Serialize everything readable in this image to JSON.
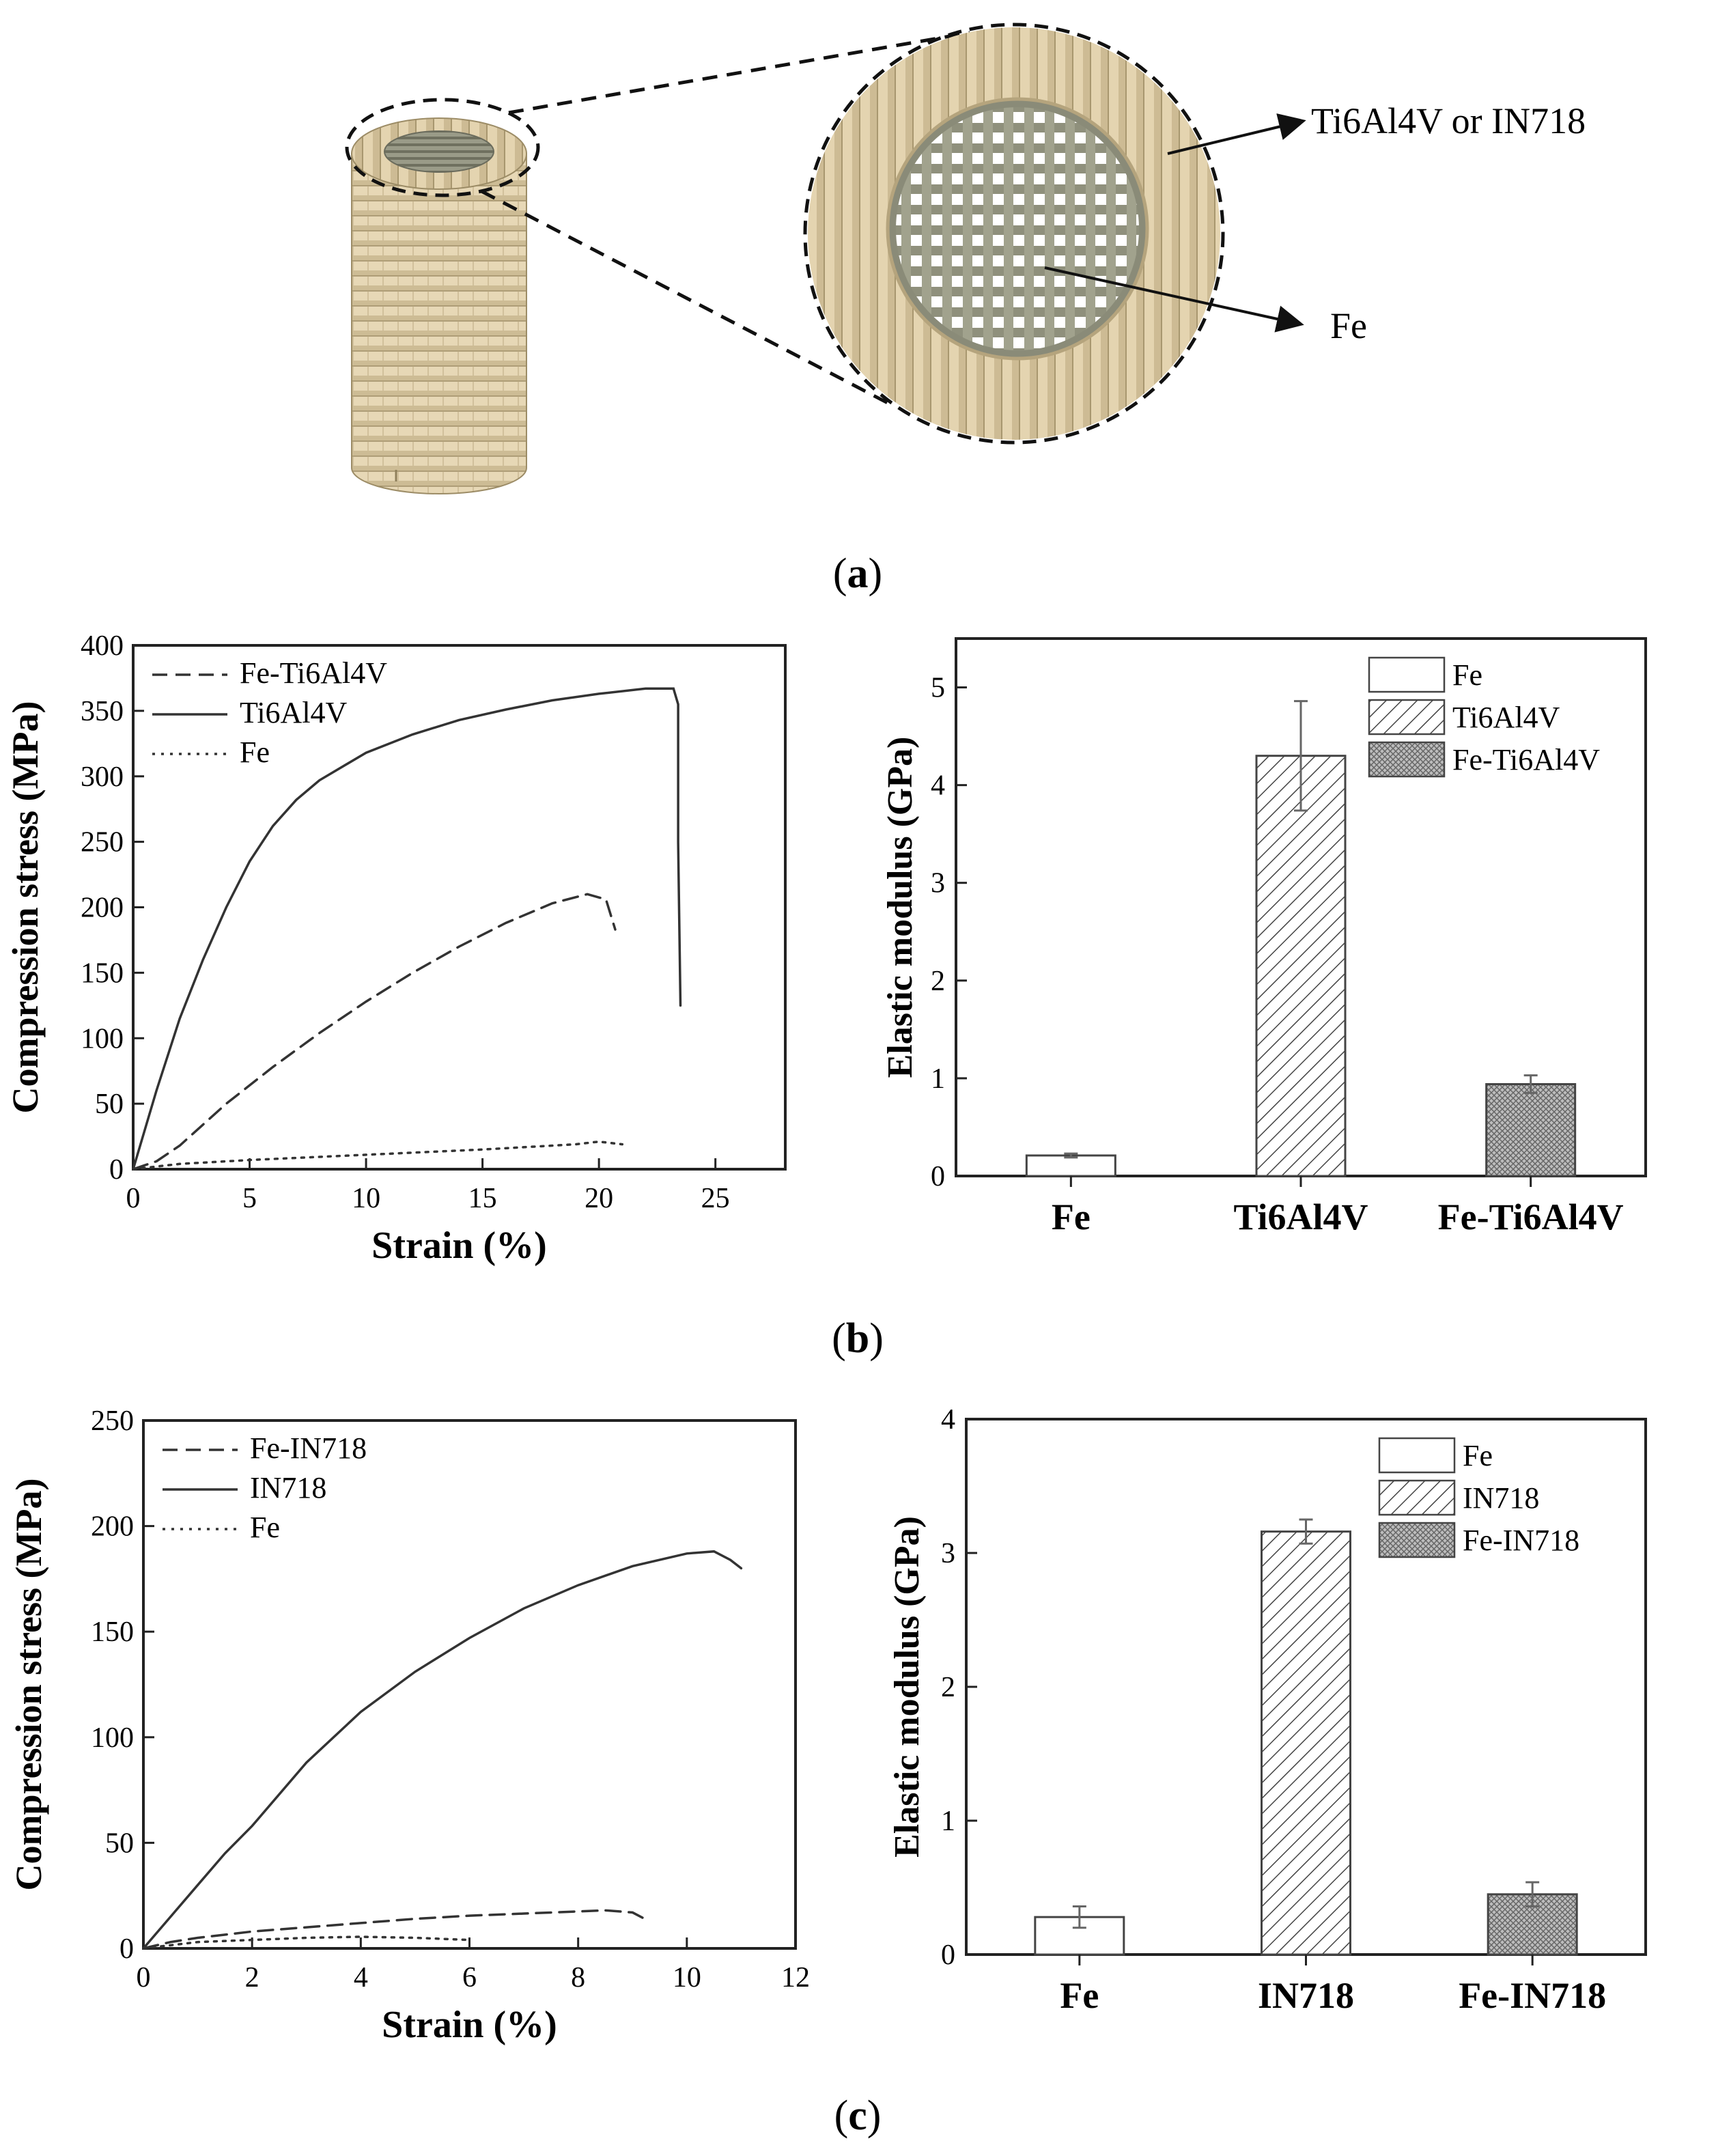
{
  "panel_a": {
    "label_open": "(",
    "label_letter": "a",
    "label_close": ")",
    "outer_label": "Ti6Al4V or IN718",
    "inner_label": "Fe",
    "colors": {
      "shell": "#e2d2ae",
      "shell_dark": "#b8a882",
      "core": "#8a8b78",
      "core_light": "#c9cab8"
    }
  },
  "panel_b": {
    "label_open": "(",
    "label_letter": "b",
    "label_close": ")"
  },
  "panel_c": {
    "label_open": "(",
    "label_letter": "c",
    "label_close": ")"
  },
  "chart_data": [
    {
      "id": "b_left",
      "type": "line",
      "xlabel": "Strain (%)",
      "ylabel": "Compression stress (MPa)",
      "xlim": [
        0,
        28
      ],
      "ylim": [
        0,
        400
      ],
      "xticks": [
        0,
        5,
        10,
        15,
        20,
        25
      ],
      "yticks": [
        0,
        50,
        100,
        150,
        200,
        250,
        300,
        350,
        400
      ],
      "legend": "top-left",
      "series": [
        {
          "name": "Fe-Ti6Al4V",
          "style": "dashed",
          "x": [
            0,
            1,
            2,
            3,
            4,
            5,
            6,
            8,
            10,
            12,
            14,
            16,
            18,
            19.5,
            20.3,
            20.7
          ],
          "y": [
            0,
            6,
            18,
            34,
            50,
            64,
            78,
            104,
            128,
            150,
            170,
            188,
            203,
            210,
            206,
            183
          ]
        },
        {
          "name": "Ti6Al4V",
          "style": "solid",
          "x": [
            0,
            1,
            2,
            3,
            4,
            5,
            6,
            7,
            8,
            10,
            12,
            14,
            16,
            18,
            20,
            22,
            23.2,
            23.4,
            23.4,
            23.5
          ],
          "y": [
            0,
            60,
            115,
            160,
            200,
            235,
            262,
            282,
            297,
            318,
            332,
            343,
            351,
            358,
            363,
            367,
            367,
            355,
            250,
            125
          ]
        },
        {
          "name": "Fe",
          "style": "dotted",
          "x": [
            0,
            2,
            5,
            10,
            15,
            19,
            20,
            21
          ],
          "y": [
            0,
            4,
            7,
            11,
            15,
            19,
            21,
            19
          ]
        }
      ]
    },
    {
      "id": "b_right",
      "type": "bar",
      "xlabel": "",
      "ylabel": "Elastic modulus (GPa)",
      "ylim": [
        0,
        5.5
      ],
      "yticks": [
        0,
        1,
        2,
        3,
        4,
        5
      ],
      "categories": [
        "Fe",
        "Ti6Al4V",
        "Fe-Ti6Al4V"
      ],
      "values": [
        0.21,
        4.3,
        0.94
      ],
      "errors": [
        0.02,
        0.56,
        0.09
      ],
      "fills": [
        "plain",
        "hatch",
        "crosshatch"
      ],
      "legend": "top-right",
      "legend_labels": [
        "Fe",
        "Ti6Al4V",
        "Fe-Ti6Al4V"
      ]
    },
    {
      "id": "c_left",
      "type": "line",
      "xlabel": "Strain (%)",
      "ylabel": "Compression stress (MPa)",
      "xlim": [
        0,
        12
      ],
      "ylim": [
        0,
        250
      ],
      "xticks": [
        0,
        2,
        4,
        6,
        8,
        10,
        12
      ],
      "yticks": [
        0,
        50,
        100,
        150,
        200,
        250
      ],
      "legend": "top-left",
      "series": [
        {
          "name": "Fe-IN718",
          "style": "dashed",
          "x": [
            0,
            0.5,
            1,
            2,
            3,
            4,
            5,
            6,
            7,
            8,
            8.5,
            9,
            9.3
          ],
          "y": [
            0,
            3,
            5,
            8,
            10,
            12,
            14,
            15.5,
            16.5,
            17.5,
            18,
            17,
            13
          ]
        },
        {
          "name": "IN718",
          "style": "solid",
          "x": [
            0,
            0.5,
            1,
            1.5,
            2,
            3,
            4,
            5,
            6,
            7,
            8,
            9,
            10,
            10.5,
            10.8,
            11
          ],
          "y": [
            0,
            15,
            30,
            45,
            58,
            88,
            112,
            131,
            147,
            161,
            172,
            181,
            187,
            188,
            184,
            180
          ]
        },
        {
          "name": "Fe",
          "style": "dotted",
          "x": [
            0,
            1,
            2,
            3,
            4,
            5,
            6
          ],
          "y": [
            0,
            3,
            4,
            5,
            5.5,
            5,
            4
          ]
        }
      ]
    },
    {
      "id": "c_right",
      "type": "bar",
      "xlabel": "",
      "ylabel": "Elastic modulus (GPa)",
      "ylim": [
        0,
        4
      ],
      "yticks": [
        0,
        1,
        2,
        3,
        4
      ],
      "categories": [
        "Fe",
        "IN718",
        "Fe-IN718"
      ],
      "values": [
        0.28,
        3.16,
        0.45
      ],
      "errors": [
        0.08,
        0.09,
        0.09
      ],
      "fills": [
        "plain",
        "hatch",
        "crosshatch"
      ],
      "legend": "top-right",
      "legend_labels": [
        "Fe",
        "IN718",
        "Fe-IN718"
      ]
    }
  ]
}
